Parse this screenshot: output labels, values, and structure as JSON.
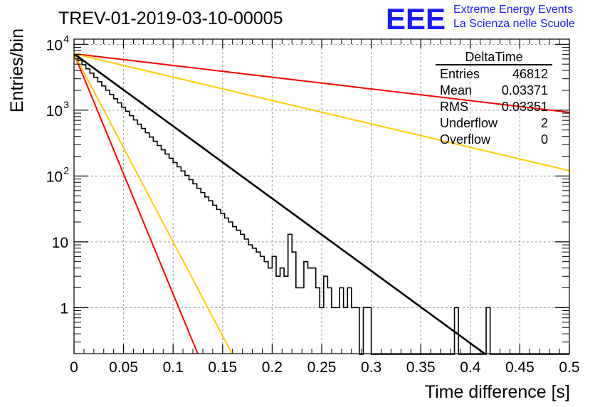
{
  "chart_data": {
    "type": "histogram",
    "title": "TREV-01-2019-03-10-00005",
    "xlabel": "Time difference [s]",
    "ylabel": "Entries/bin",
    "xlim": [
      0,
      0.5
    ],
    "ylim": [
      0.2,
      12000
    ],
    "yscale": "log",
    "grid": true,
    "x_ticks": [
      "0",
      "0.05",
      "0.1",
      "0.15",
      "0.2",
      "0.25",
      "0.3",
      "0.35",
      "0.4",
      "0.45",
      "0.5"
    ],
    "y_ticks": [
      {
        "value": 1,
        "label": "1"
      },
      {
        "value": 10,
        "label": "10"
      },
      {
        "value": 100,
        "label": "10",
        "exp": "2"
      },
      {
        "value": 1000,
        "label": "10",
        "exp": "3"
      },
      {
        "value": 10000,
        "label": "10",
        "exp": "4"
      }
    ],
    "histogram": {
      "bin_width": 0.004,
      "start": 0,
      "counts": [
        6700,
        5700,
        4900,
        4250,
        3650,
        3150,
        2700,
        2330,
        2010,
        1730,
        1490,
        1290,
        1110,
        960,
        825,
        710,
        612,
        527,
        454,
        391,
        337,
        290,
        250,
        216,
        186,
        160,
        138,
        119,
        102,
        88,
        76,
        65,
        56,
        48,
        42,
        36,
        31,
        27,
        23,
        20,
        17,
        15,
        13,
        11,
        9,
        8,
        7,
        6,
        5,
        4,
        6,
        3,
        4,
        3,
        13,
        7,
        2,
        2,
        5,
        4,
        4,
        2,
        1,
        3,
        2,
        1,
        1,
        2,
        1,
        2,
        1,
        1,
        0,
        1,
        1,
        0,
        0,
        0,
        0,
        0,
        0,
        0,
        0,
        0,
        0,
        0,
        0,
        0,
        0,
        0,
        0,
        0,
        0,
        0,
        0,
        0,
        1,
        0,
        0,
        0,
        0,
        0,
        0,
        0,
        1,
        0,
        0,
        0,
        0,
        0,
        0,
        0,
        0,
        0,
        0,
        0,
        0,
        0,
        0,
        0,
        0,
        0,
        0,
        0,
        0
      ]
    },
    "fit_lines": [
      {
        "color": "#000000",
        "A": 7200,
        "tau": 0.0395
      },
      {
        "color": "#ff0000",
        "A": 7200,
        "tau": 0.0119
      },
      {
        "color": "#ffcc00",
        "A": 7200,
        "tau": 0.0152
      },
      {
        "color": "#ff0000",
        "A": 7200,
        "tau": 0.2437
      },
      {
        "color": "#ffcc00",
        "A": 7200,
        "tau": 0.1222
      }
    ],
    "stats": {
      "title": "DeltaTime",
      "rows": [
        {
          "label": "Entries",
          "value": "46812"
        },
        {
          "label": "Mean",
          "value": "0.03371"
        },
        {
          "label": "RMS",
          "value": "0.03351"
        },
        {
          "label": "Underflow",
          "value": "2"
        },
        {
          "label": "Overflow",
          "value": "0"
        }
      ]
    },
    "logo": {
      "mark": "EEE",
      "line1": "Extreme Energy Events",
      "line2": "La Scienza nelle Scuole",
      "color": "#1a1aff"
    }
  }
}
